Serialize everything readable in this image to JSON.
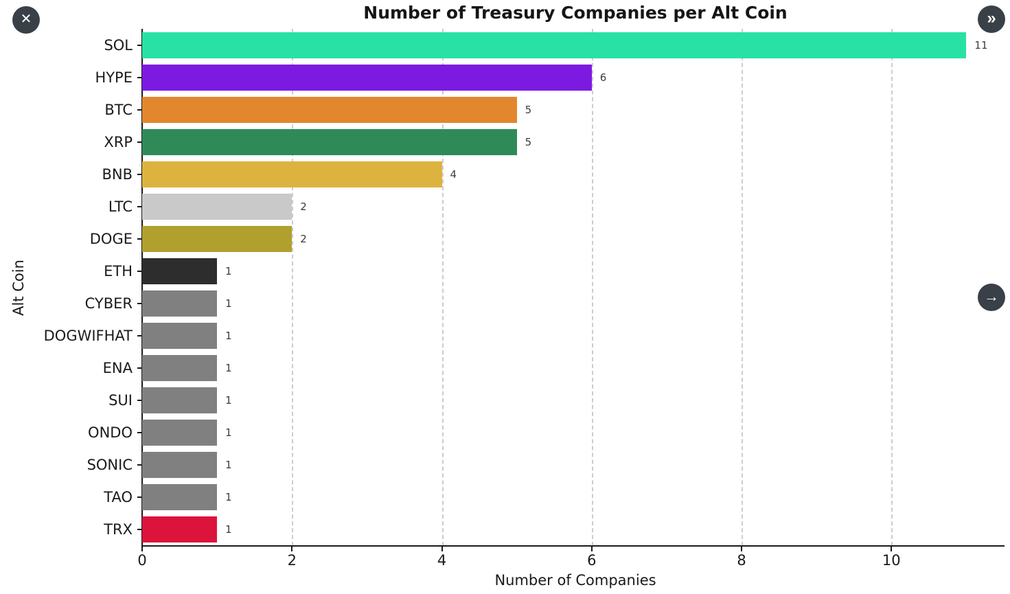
{
  "overlay": {
    "close_glyph": "✕",
    "skip_glyph": "»",
    "next_glyph": "→"
  },
  "chart_data": {
    "type": "bar",
    "orientation": "horizontal",
    "title": "Number of Treasury Companies per Alt Coin",
    "xlabel": "Number of Companies",
    "ylabel": "Alt Coin",
    "categories": [
      "SOL",
      "HYPE",
      "BTC",
      "XRP",
      "BNB",
      "LTC",
      "DOGE",
      "ETH",
      "CYBER",
      "DOGWIFHAT",
      "ENA",
      "SUI",
      "ONDO",
      "SONIC",
      "TAO",
      "TRX"
    ],
    "values": [
      11,
      6,
      5,
      5,
      4,
      2,
      2,
      1,
      1,
      1,
      1,
      1,
      1,
      1,
      1,
      1
    ],
    "colors": [
      "#27e2a4",
      "#7c1ae1",
      "#e2872e",
      "#2e8b57",
      "#ddb23f",
      "#c9c9c9",
      "#b0a12f",
      "#2d2d2d",
      "#808080",
      "#808080",
      "#808080",
      "#808080",
      "#808080",
      "#808080",
      "#808080",
      "#dc143c"
    ],
    "xlim": [
      0,
      11.5
    ],
    "xticks": [
      0,
      2,
      4,
      6,
      8,
      10
    ],
    "grid": "dashed-vertical",
    "legend": "none"
  }
}
